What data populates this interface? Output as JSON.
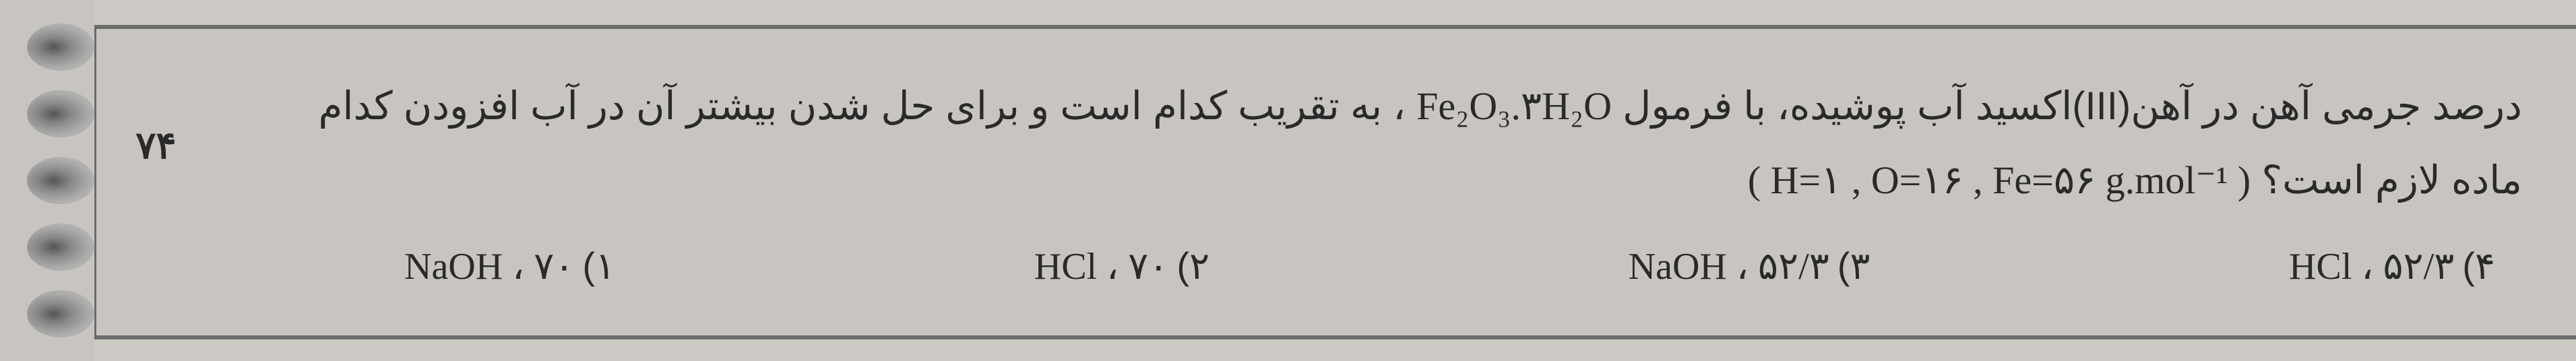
{
  "question": {
    "number": "۷۴",
    "text_part1": "درصد جرمی آهن در آهن(III)اکسید آب پوشیده، با فرمول",
    "formula": "Fe₂O₃.۳H₂O",
    "text_part2": "، به تقریب کدام است و برای حل شدن بیشتر آن در آب افزودن کدام ماده لازم است؟",
    "molar_masses": "( H=۱ , O=۱۶ , Fe=۵۶ g.mol⁻¹ )",
    "options": [
      {
        "num": "۱)",
        "value": "NaOH ، ۷۰"
      },
      {
        "num": "۲)",
        "value": "HCl ، ۷۰"
      },
      {
        "num": "۳)",
        "value": "NaOH ، ۵۲/۳"
      },
      {
        "num": "۴)",
        "value": "HCl ، ۵۲/۳"
      }
    ]
  },
  "styling": {
    "background_color": "#cdcac5",
    "border_color": "#6b6b6b",
    "text_color": "#2a2a2a",
    "question_fontsize": 58,
    "option_fontsize": 56,
    "number_fontsize": 56
  }
}
